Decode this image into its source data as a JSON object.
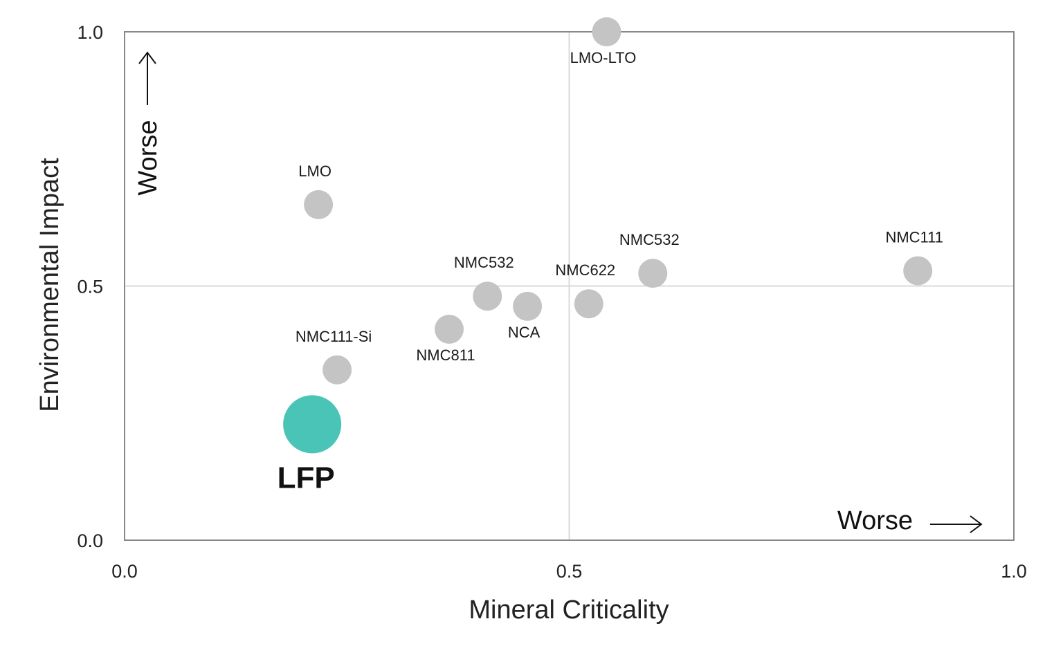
{
  "chart_data": {
    "type": "scatter",
    "title": "",
    "xlabel": "Mineral Criticality",
    "ylabel": "Environmental Impact",
    "xlim": [
      0.0,
      1.0
    ],
    "ylim": [
      0.0,
      1.0
    ],
    "xticks": [
      "0.0",
      "0.5",
      "1.0"
    ],
    "yticks": [
      "0.0",
      "0.5",
      "1.0"
    ],
    "grid": "midlines at 0.5",
    "worse_x_label": "Worse",
    "worse_y_label": "Worse",
    "points": [
      {
        "name": "LMO-LTO",
        "x": 0.542,
        "y": 1.0,
        "label_pos": "below"
      },
      {
        "name": "LMO",
        "x": 0.218,
        "y": 0.66,
        "label_pos": "above"
      },
      {
        "name": "NMC532",
        "x": 0.408,
        "y": 0.48,
        "label_pos": "above"
      },
      {
        "name": "NMC622",
        "x": 0.522,
        "y": 0.465,
        "label_pos": "above"
      },
      {
        "name": "NMC532",
        "x": 0.594,
        "y": 0.525,
        "label_pos": "above"
      },
      {
        "name": "NMC111",
        "x": 0.892,
        "y": 0.53,
        "label_pos": "above"
      },
      {
        "name": "NCA",
        "x": 0.453,
        "y": 0.46,
        "label_pos": "below"
      },
      {
        "name": "NMC811",
        "x": 0.365,
        "y": 0.415,
        "label_pos": "below"
      },
      {
        "name": "NMC111-Si",
        "x": 0.239,
        "y": 0.335,
        "label_pos": "above"
      },
      {
        "name": "LFP",
        "x": 0.211,
        "y": 0.228,
        "label_pos": "below",
        "highlight": true
      }
    ],
    "colors": {
      "point": "#c4c4c4",
      "highlight": "#4bc4b8",
      "axis": "#888888",
      "grid": "#d9d9d9"
    }
  }
}
